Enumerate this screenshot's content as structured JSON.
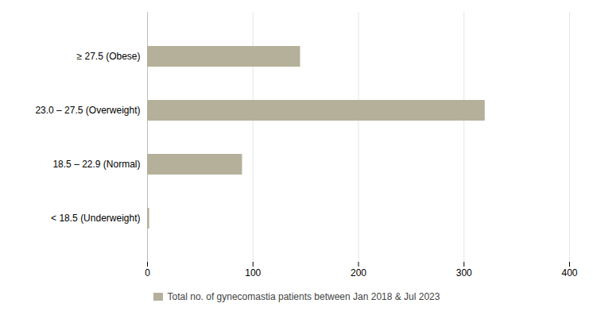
{
  "chart_data": {
    "type": "bar",
    "orientation": "horizontal",
    "categories": [
      "< 18.5 (Underweight)",
      "18.5 – 22.9 (Normal)",
      "23.0 – 27.5 (Overweight)",
      "≥ 27.5 (Obese)"
    ],
    "series": [
      {
        "name": "Total no. of gynecomastia patients between Jan 2018 & Jul 2023",
        "color": "#b5b09a",
        "values": [
          2,
          90,
          320,
          145
        ]
      }
    ],
    "xlim": [
      0,
      400
    ],
    "xticks": [
      0,
      100,
      200,
      300,
      400
    ],
    "grid": true,
    "legend": "bottom"
  }
}
